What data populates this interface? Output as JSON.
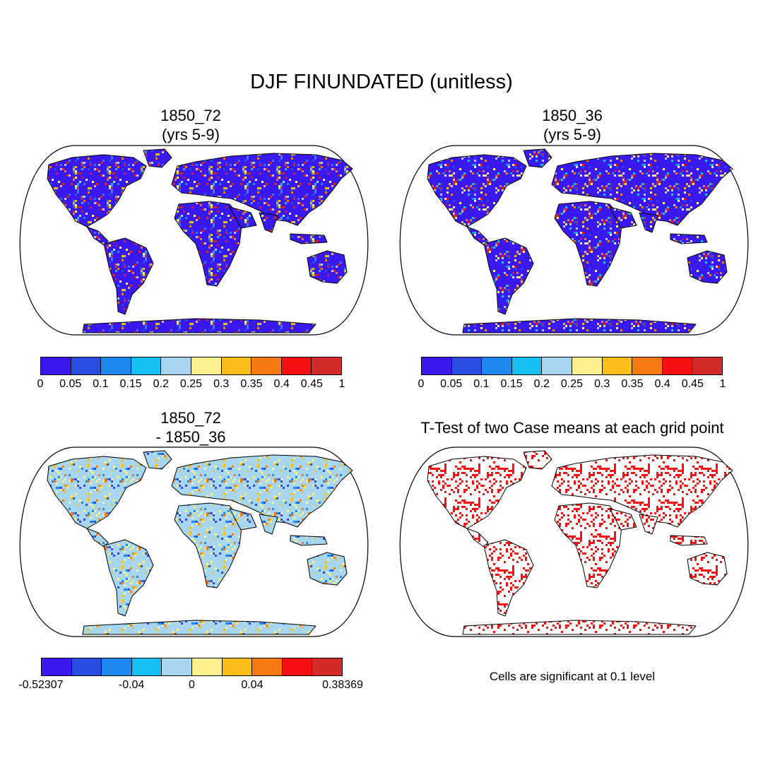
{
  "figure_title": "DJF FINUNDATED (unitless)",
  "palette": [
    "#3a18f0",
    "#2b4ce0",
    "#1e88f2",
    "#15c0f5",
    "#a6d6f0",
    "#fbf08c",
    "#fbbd1a",
    "#f97a10",
    "#f80f0f",
    "#d42a2a"
  ],
  "panels": [
    {
      "title": "1850_72\n(yrs 5-9)",
      "kind": "field",
      "bg": "#3a18f0",
      "pattern": [
        "#2b4ce0",
        "#1e88f2",
        "#15c0f5",
        "#a6d6f0",
        "#fbf08c",
        "#fbbd1a",
        "#f97a10",
        "#f80f0f",
        "#d42a2a"
      ]
    },
    {
      "title": "1850_36\n (yrs 5-9)",
      "kind": "field",
      "bg": "#3a18f0",
      "pattern": [
        "#2b4ce0",
        "#1e88f2",
        "#15c0f5",
        "#a6d6f0",
        "#fbf08c",
        "#fbbd1a",
        "#f97a10",
        "#f80f0f",
        "#d42a2a"
      ]
    },
    {
      "title": "1850_72\n- 1850_36",
      "kind": "diff",
      "bg": "#a6d6f0",
      "pattern": [
        "#fbf08c",
        "#fbf08c",
        "#fbbd1a",
        "#1e88f2",
        "#2b4ce0",
        "#f97a10"
      ]
    },
    {
      "title": "T-Test of two Case means at each grid point",
      "kind": "ttest",
      "bg": "#ffffff",
      "pattern": [
        "#f80f0f",
        "#f80f0f"
      ]
    }
  ],
  "colorbars": [
    {
      "labels": [
        "0",
        "0.05",
        "0.1",
        "0.15",
        "0.2",
        "0.25",
        "0.3",
        "0.35",
        "0.4",
        "0.45",
        "1"
      ]
    },
    {
      "labels": [
        "0",
        "0.05",
        "0.1",
        "0.15",
        "0.2",
        "0.25",
        "0.3",
        "0.35",
        "0.4",
        "0.45",
        "1"
      ]
    },
    {
      "labels": [
        "-0.52307",
        "-0.04",
        "0",
        "0.04",
        "0.38369"
      ],
      "label_positions": [
        0,
        3,
        5,
        7,
        10
      ]
    }
  ],
  "significance_note": "Cells are significant at 0.1 level"
}
